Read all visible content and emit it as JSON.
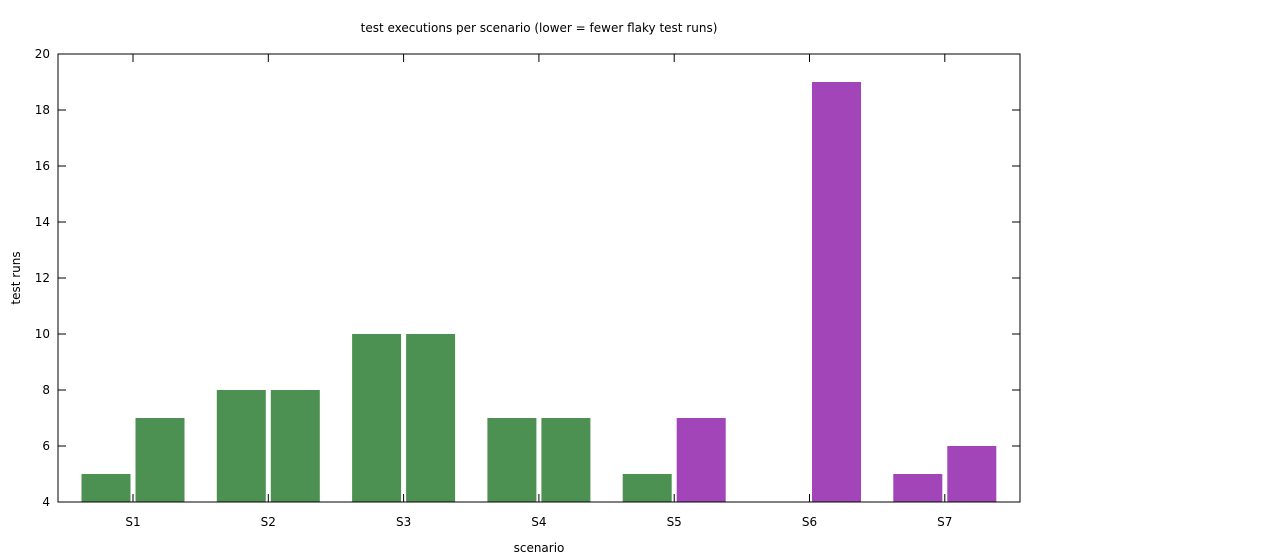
{
  "chart_data": {
    "type": "bar",
    "title": "test executions per scenario (lower = fewer flaky test runs)",
    "xlabel": "scenario",
    "ylabel": "test runs",
    "ylim": [
      4,
      20
    ],
    "yticks": [
      4,
      6,
      8,
      10,
      12,
      14,
      16,
      18,
      20
    ],
    "categories": [
      "S1",
      "S2",
      "S3",
      "S4",
      "S5",
      "S6",
      "S7"
    ],
    "bars": [
      {
        "category": "S1",
        "slot": 0,
        "value": 5,
        "color": "#4c9151"
      },
      {
        "category": "S1",
        "slot": 1,
        "value": 7,
        "color": "#4c9151"
      },
      {
        "category": "S2",
        "slot": 0,
        "value": 8,
        "color": "#4c9151"
      },
      {
        "category": "S2",
        "slot": 1,
        "value": 8,
        "color": "#4c9151"
      },
      {
        "category": "S3",
        "slot": 0,
        "value": 10,
        "color": "#4c9151"
      },
      {
        "category": "S3",
        "slot": 1,
        "value": 10,
        "color": "#4c9151"
      },
      {
        "category": "S4",
        "slot": 0,
        "value": 7,
        "color": "#4c9151"
      },
      {
        "category": "S4",
        "slot": 1,
        "value": 7,
        "color": "#4c9151"
      },
      {
        "category": "S5",
        "slot": 0,
        "value": 5,
        "color": "#4c9151"
      },
      {
        "category": "S5",
        "slot": 1,
        "value": 7,
        "color": "#a145b8"
      },
      {
        "category": "S6",
        "slot": 1,
        "value": 19,
        "color": "#a145b8"
      },
      {
        "category": "S7",
        "slot": 0,
        "value": 5,
        "color": "#a145b8"
      },
      {
        "category": "S7",
        "slot": 1,
        "value": 6,
        "color": "#a145b8"
      }
    ],
    "grid": false,
    "legend": "none"
  }
}
